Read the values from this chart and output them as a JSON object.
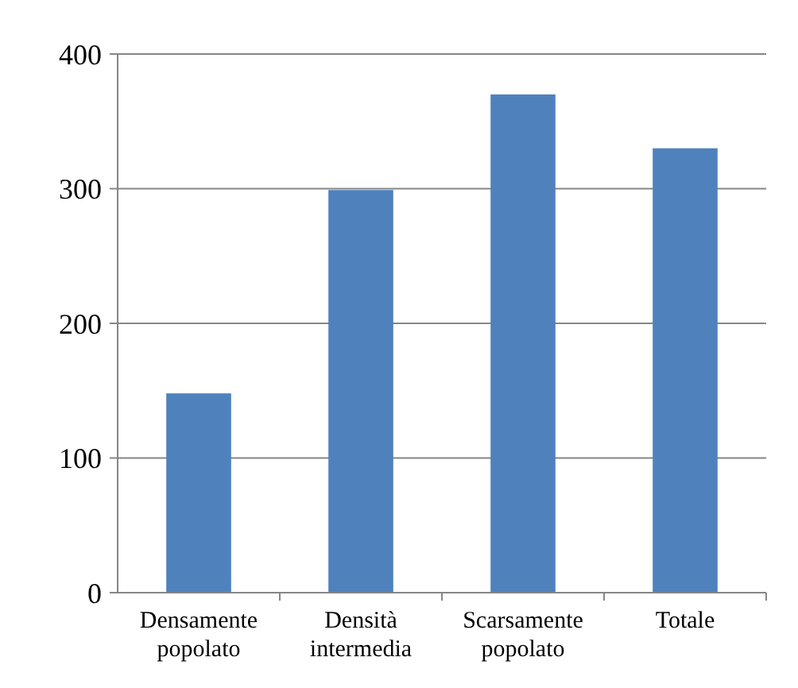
{
  "chart_data": {
    "type": "bar",
    "categories": [
      "Densamente popolato",
      "Densità intermedia",
      "Scarsamente popolato",
      "Totale"
    ],
    "values": [
      148,
      299,
      370,
      330
    ],
    "color": "#4f81bd",
    "ylim": [
      0,
      400
    ],
    "yticks": [
      0,
      100,
      200,
      300,
      400
    ],
    "grid": "y"
  }
}
